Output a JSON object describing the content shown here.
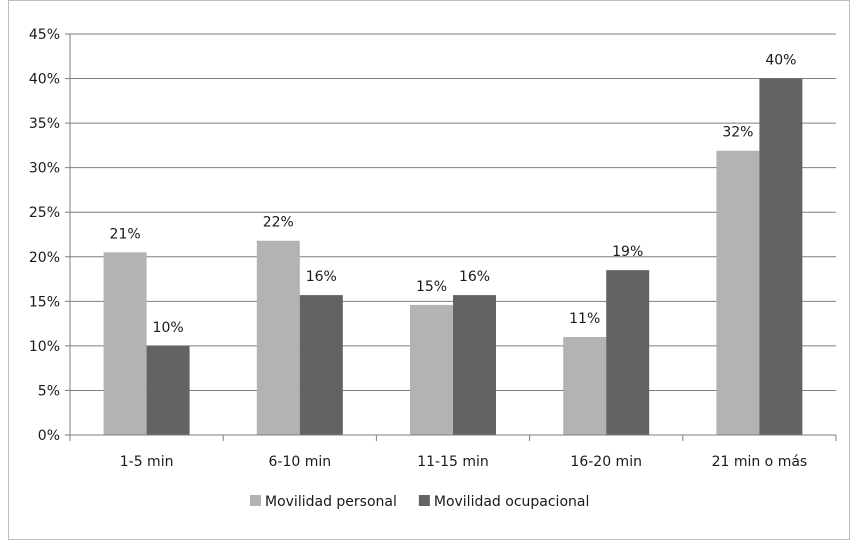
{
  "chart_data": {
    "type": "bar",
    "title": "",
    "xlabel": "",
    "ylabel": "",
    "categories": [
      "1-5 min",
      "6-10 min",
      "11-15 min",
      "16-20 min",
      "21 min o más"
    ],
    "series": [
      {
        "name": "Movilidad personal",
        "color": "#b3b3b3",
        "values": [
          20.5,
          21.8,
          14.6,
          11.0,
          31.9
        ],
        "labels": [
          "21%",
          "22%",
          "15%",
          "11%",
          "32%"
        ]
      },
      {
        "name": "Movilidad ocupacional",
        "color": "#636363",
        "values": [
          10.0,
          15.7,
          15.7,
          18.5,
          40.0
        ],
        "labels": [
          "10%",
          "16%",
          "16%",
          "19%",
          "40%"
        ]
      }
    ],
    "ylim": [
      0,
      45
    ],
    "yticks": [
      0,
      5,
      10,
      15,
      20,
      25,
      30,
      35,
      40,
      45
    ],
    "ytick_labels": [
      "0%",
      "5%",
      "10%",
      "15%",
      "20%",
      "25%",
      "30%",
      "35%",
      "40%",
      "45%"
    ],
    "grid": true,
    "legend_position": "bottom"
  }
}
